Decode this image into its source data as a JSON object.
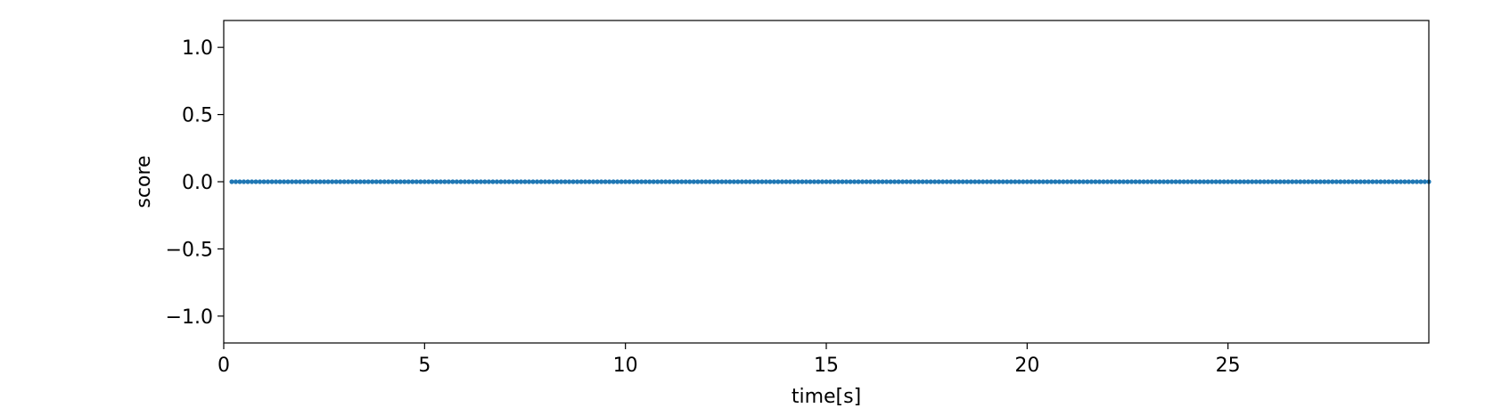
{
  "chart_data": {
    "type": "scatter",
    "xlabel": "time[s]",
    "ylabel": "score",
    "xlim": [
      0,
      30
    ],
    "ylim": [
      -1.2,
      1.2
    ],
    "xticks": [
      0,
      5,
      10,
      15,
      20,
      25
    ],
    "xtick_labels": [
      "0",
      "5",
      "10",
      "15",
      "20",
      "25"
    ],
    "yticks": [
      1.0,
      0.5,
      0.0,
      -0.5,
      -1.0
    ],
    "ytick_labels": [
      "1.0",
      "0.5",
      "0.0",
      "−0.5",
      "−1.0"
    ],
    "grid": false,
    "marker_color": "#1f77b4",
    "series": [
      {
        "x_start": 0.2,
        "x_step": 0.1,
        "count": 299,
        "y_constant": 0.0
      }
    ]
  }
}
